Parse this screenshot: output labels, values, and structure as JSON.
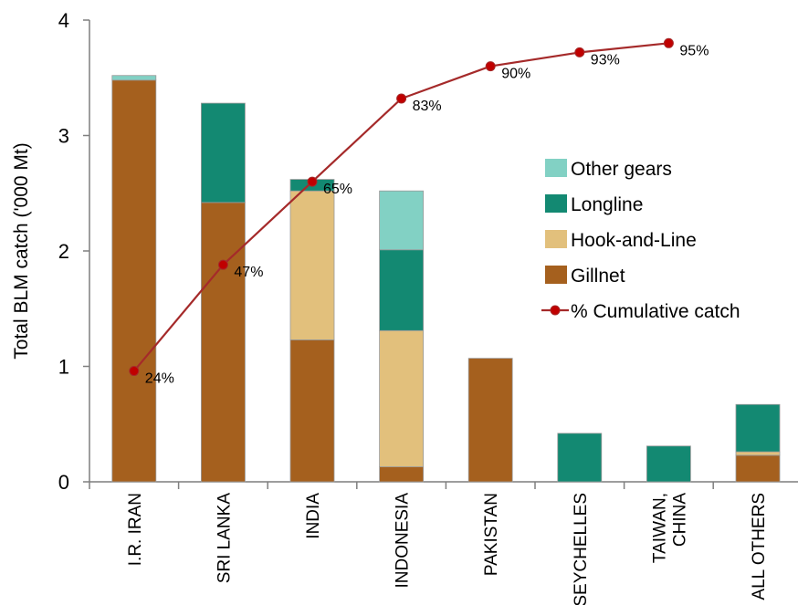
{
  "chart_data": {
    "type": "bar",
    "stacked": true,
    "title": "",
    "ylabel": "Total BLM catch ('000 Mt)",
    "xlabel": "",
    "ylim": [
      0,
      4
    ],
    "yticks": [
      "0",
      "1",
      "2",
      "3",
      "4"
    ],
    "grid": false,
    "legend_position": "right",
    "categories": [
      "I.R. IRAN",
      "SRI LANKA",
      "INDIA",
      "INDONESIA",
      "PAKISTAN",
      "SEYCHELLES",
      "TAIWAN,\nCHINA",
      "ALL OTHERS"
    ],
    "series": [
      {
        "name": "Gillnet",
        "color": "#A5601E",
        "values": [
          3.48,
          2.42,
          1.23,
          0.13,
          1.07,
          0,
          0,
          0.23
        ]
      },
      {
        "name": "Hook-and-Line",
        "color": "#E2C07C",
        "values": [
          0,
          0,
          1.29,
          1.18,
          0,
          0,
          0,
          0.03
        ]
      },
      {
        "name": "Longline",
        "color": "#138972",
        "values": [
          0,
          0.86,
          0.1,
          0.7,
          0,
          0.42,
          0.31,
          0.41
        ]
      },
      {
        "name": "Other gears",
        "color": "#82D1C4",
        "values": [
          0.04,
          0,
          0,
          0.51,
          0,
          0,
          0,
          0
        ]
      }
    ],
    "line_series": {
      "name": "% Cumulative catch",
      "color": "#A52A2A",
      "values": [
        24,
        47,
        65,
        83,
        90,
        93,
        95
      ],
      "labels": [
        "24%",
        "47%",
        "65%",
        "83%",
        "90%",
        "93%",
        "95%"
      ],
      "y_scale_note": "percent mapped onto catch axis (100% = 4)"
    },
    "legend": [
      "Other gears",
      "Longline",
      "Hook-and-Line",
      "Gillnet",
      "% Cumulative catch"
    ]
  }
}
